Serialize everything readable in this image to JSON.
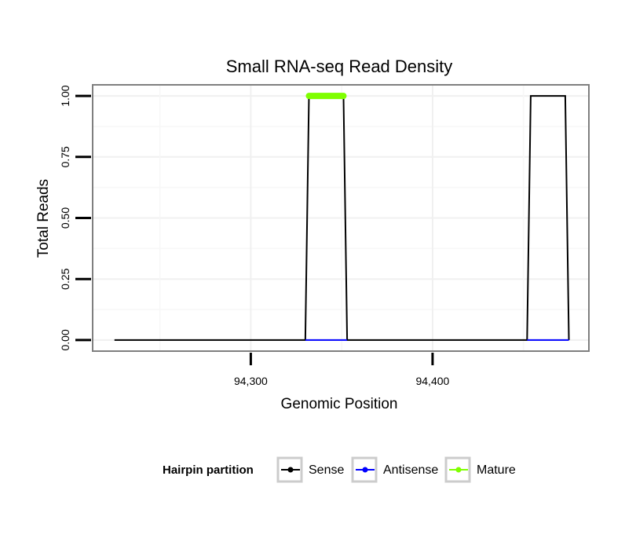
{
  "chart_data": {
    "type": "line",
    "title": "Small RNA-seq Read Density",
    "xlabel": "Genomic Position",
    "ylabel": "Total Reads",
    "xlim": [
      94213,
      94486
    ],
    "ylim": [
      -0.0454,
      1.0454
    ],
    "x_ticks": [
      94300,
      94400
    ],
    "x_tick_labels": [
      "94,300",
      "94,400"
    ],
    "y_ticks": [
      0,
      0.25,
      0.5,
      0.75,
      1.0
    ],
    "y_tick_labels": [
      "0.00",
      "0.25",
      "0.50",
      "0.75",
      "1.00"
    ],
    "grid": true,
    "series": [
      {
        "name": "Sense",
        "color": "#000000",
        "x": [
          94225,
          94330,
          94332,
          94351,
          94353,
          94452,
          94454,
          94473,
          94475
        ],
        "y": [
          0,
          0,
          1,
          1,
          0,
          0,
          1,
          1,
          0
        ]
      },
      {
        "name": "Antisense",
        "color": "#0000ff",
        "x": [
          94330,
          94353,
          94452,
          94475
        ],
        "y": [
          0,
          0,
          0,
          0
        ]
      },
      {
        "name": "Mature",
        "color": "#7fff00",
        "x": [
          94332,
          94351
        ],
        "y": [
          1,
          1
        ]
      }
    ],
    "legend": {
      "title": "Hairpin partition",
      "position": "bottom",
      "items": [
        {
          "label": "Sense",
          "color": "#000000"
        },
        {
          "label": "Antisense",
          "color": "#0000ff"
        },
        {
          "label": "Mature",
          "color": "#7fff00"
        }
      ]
    }
  }
}
